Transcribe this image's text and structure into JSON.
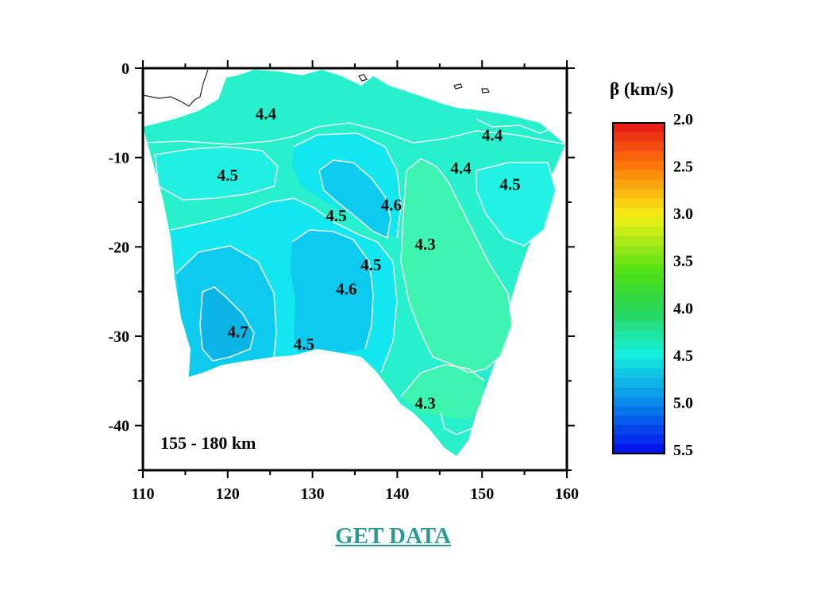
{
  "map": {
    "x_range": [
      110,
      160
    ],
    "y_range": [
      -45,
      0
    ],
    "x_ticks": [
      "110",
      "120",
      "130",
      "140",
      "150",
      "160"
    ],
    "y_ticks": [
      "0",
      "-10",
      "-20",
      "-30",
      "-40"
    ],
    "depth_label": "155 - 180 km",
    "contour_labels": [
      {
        "text": "4.4",
        "lon": 124.5,
        "lat": -5.1
      },
      {
        "text": "4.5",
        "lon": 120.0,
        "lat": -12.0
      },
      {
        "text": "4.5",
        "lon": 132.8,
        "lat": -16.5
      },
      {
        "text": "4.6",
        "lon": 139.3,
        "lat": -15.3
      },
      {
        "text": "4.4",
        "lon": 151.2,
        "lat": -7.5
      },
      {
        "text": "4.4",
        "lon": 147.5,
        "lat": -11.2
      },
      {
        "text": "4.5",
        "lon": 153.3,
        "lat": -13.0
      },
      {
        "text": "4.3",
        "lon": 143.3,
        "lat": -19.7
      },
      {
        "text": "4.5",
        "lon": 136.9,
        "lat": -22.0
      },
      {
        "text": "4.6",
        "lon": 134.0,
        "lat": -24.7
      },
      {
        "text": "4.7",
        "lon": 121.2,
        "lat": -29.5
      },
      {
        "text": "4.5",
        "lon": 129.0,
        "lat": -30.9
      },
      {
        "text": "4.3",
        "lon": 143.3,
        "lat": -37.5
      }
    ]
  },
  "colorbar": {
    "title": "β (km/s)",
    "ticks": [
      "2.0",
      "2.5",
      "3.0",
      "3.5",
      "4.0",
      "4.5",
      "5.0",
      "5.5"
    ],
    "min": 2.0,
    "max": 5.5
  },
  "link": {
    "label": "GET DATA"
  },
  "colors": {
    "shallow_velocity": "#3ef5b0",
    "mid_velocity": "#20f2d8",
    "deep_velocity": "#10d8f2",
    "deepest_velocity": "#0bbbe8",
    "contour_line": "#e8f4f4",
    "link": "#2b9a96"
  }
}
